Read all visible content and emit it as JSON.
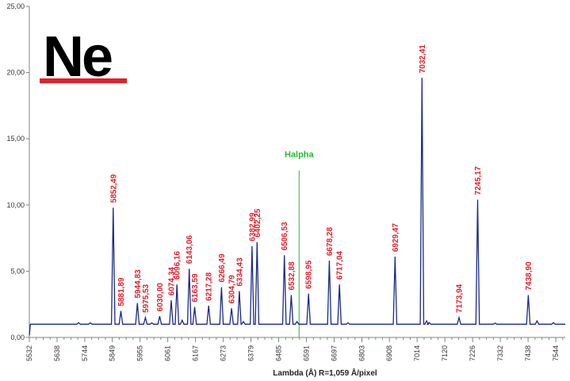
{
  "chart_data": {
    "type": "line",
    "element_symbol": "Ne",
    "xlabel": "Lambda (Å) R=1,059 Å/pixel",
    "ylabel": "",
    "xlim": [
      5532,
      7580
    ],
    "ylim": [
      0,
      25
    ],
    "y_ticks": [
      0,
      5,
      10,
      15,
      20,
      25
    ],
    "y_tick_labels": [
      "0,00",
      "5,00",
      "10,00",
      "15,00",
      "20,00",
      "25,00"
    ],
    "x_ticks": [
      5532,
      5638,
      5744,
      5849,
      5955,
      6061,
      6167,
      6273,
      6379,
      6485,
      6591,
      6697,
      6803,
      6908,
      7014,
      7120,
      7226,
      7332,
      7438,
      7544
    ],
    "baseline": 1.0,
    "labeled_peaks": [
      {
        "x": 5852.49,
        "y": 9.8,
        "label": "5852,49"
      },
      {
        "x": 5881.89,
        "y": 2.0,
        "label": "5881,89"
      },
      {
        "x": 5944.83,
        "y": 2.6,
        "label": "5944,83"
      },
      {
        "x": 5975.53,
        "y": 1.5,
        "label": "5975,53"
      },
      {
        "x": 6030.0,
        "y": 1.6,
        "label": "6030,00"
      },
      {
        "x": 6074.34,
        "y": 2.8,
        "label": "6074,34"
      },
      {
        "x": 6096.16,
        "y": 4.0,
        "label": "6096,16"
      },
      {
        "x": 6143.06,
        "y": 5.2,
        "label": "6143,06"
      },
      {
        "x": 6163.59,
        "y": 2.3,
        "label": "6163,59"
      },
      {
        "x": 6217.28,
        "y": 2.4,
        "label": "6217,28"
      },
      {
        "x": 6266.49,
        "y": 3.8,
        "label": "6266,49"
      },
      {
        "x": 6304.79,
        "y": 2.2,
        "label": "6304,79"
      },
      {
        "x": 6334.43,
        "y": 3.5,
        "label": "6334,43"
      },
      {
        "x": 6382.99,
        "y": 6.9,
        "label": "6382,99"
      },
      {
        "x": 6402.25,
        "y": 7.2,
        "label": "6402,25"
      },
      {
        "x": 6506.53,
        "y": 6.2,
        "label": "6506,53"
      },
      {
        "x": 6532.88,
        "y": 3.2,
        "label": "6532,88"
      },
      {
        "x": 6598.95,
        "y": 3.3,
        "label": "6598,95"
      },
      {
        "x": 6678.28,
        "y": 5.8,
        "label": "6678,28"
      },
      {
        "x": 6717.04,
        "y": 4.0,
        "label": "6717,04"
      },
      {
        "x": 6929.47,
        "y": 6.1,
        "label": "6929,47"
      },
      {
        "x": 7032.41,
        "y": 19.6,
        "label": "7032,41"
      },
      {
        "x": 7173.94,
        "y": 1.5,
        "label": "7173,94"
      },
      {
        "x": 7245.17,
        "y": 10.4,
        "label": "7245,17"
      },
      {
        "x": 7438.9,
        "y": 3.2,
        "label": "7438,90"
      }
    ],
    "minor_peaks": [
      {
        "x": 5720,
        "y": 1.12
      },
      {
        "x": 5765,
        "y": 1.1
      },
      {
        "x": 6000,
        "y": 1.1
      },
      {
        "x": 6116,
        "y": 1.3
      },
      {
        "x": 6350,
        "y": 1.2
      },
      {
        "x": 6555,
        "y": 1.2
      },
      {
        "x": 6750,
        "y": 1.1
      },
      {
        "x": 7050,
        "y": 1.25
      },
      {
        "x": 7060,
        "y": 1.12
      },
      {
        "x": 7312,
        "y": 1.08
      },
      {
        "x": 7472,
        "y": 1.25
      },
      {
        "x": 7535,
        "y": 1.12
      }
    ],
    "marker": {
      "x": 6563,
      "label": "Halpha"
    }
  },
  "colors": {
    "spectrum": "#1a2a8a",
    "peak_label": "#e0202a",
    "marker": "#22bb33",
    "axis": "#7a8a7a",
    "underline": "#e0202a"
  }
}
